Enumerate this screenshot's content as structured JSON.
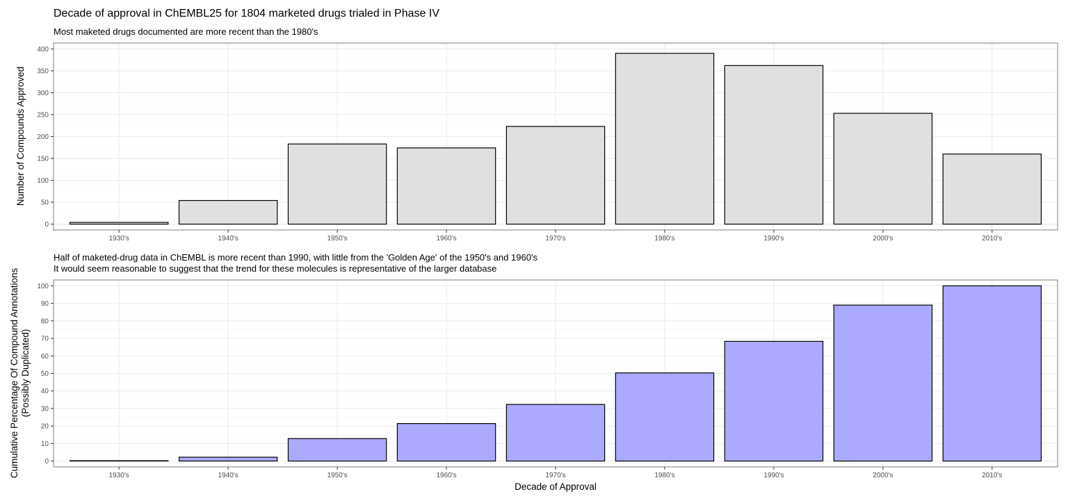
{
  "title": "Decade of approval in ChEMBL25 for 1804 marketed drugs trialed in Phase IV",
  "subtitle_top": "Most maketed drugs documented are more recent than the 1980's",
  "subtitle_bottom_line1": "Half of maketed-drug data in ChEMBL is more recent than 1990, with little from the 'Golden Age' of the 1950's and 1960's",
  "subtitle_bottom_line2": "It would seem reasonable to suggest that the trend for these molecules is representative of the larger database",
  "colors": {
    "top_fill": "#e0e0e0",
    "bottom_fill": "#aaaaff",
    "outline": "#000000",
    "panel_border": "#7f7f7f",
    "grid_major": "#ebebeb",
    "grid_minor": "#f5f5f5"
  },
  "chart_data": [
    {
      "type": "bar",
      "categories": [
        "1930's",
        "1940's",
        "1950's",
        "1960's",
        "1970's",
        "1980's",
        "1990's",
        "2000's",
        "2010's"
      ],
      "values": [
        4,
        54,
        183,
        174,
        223,
        390,
        362,
        253,
        160
      ],
      "ylabel": "Number of Compounds Approved",
      "xlabel": "",
      "ylim": [
        0,
        400
      ],
      "yticks": [
        0,
        50,
        100,
        150,
        200,
        250,
        300,
        350,
        400
      ],
      "grid": true
    },
    {
      "type": "bar",
      "categories": [
        "1930's",
        "1940's",
        "1950's",
        "1960's",
        "1970's",
        "1980's",
        "1990's",
        "2000's",
        "2010's"
      ],
      "values": [
        0.2,
        2.2,
        12.8,
        21.4,
        32.3,
        50.3,
        68.3,
        89.0,
        100
      ],
      "ylabel_line1": "Cumulative Percentage Of Compound Annotations",
      "ylabel_line2": "(Possibly Duplicated)",
      "xlabel": "Decade of Approval",
      "ylim": [
        0,
        100
      ],
      "yticks": [
        0,
        10,
        20,
        30,
        40,
        50,
        60,
        70,
        80,
        90,
        100
      ],
      "grid": true
    }
  ]
}
